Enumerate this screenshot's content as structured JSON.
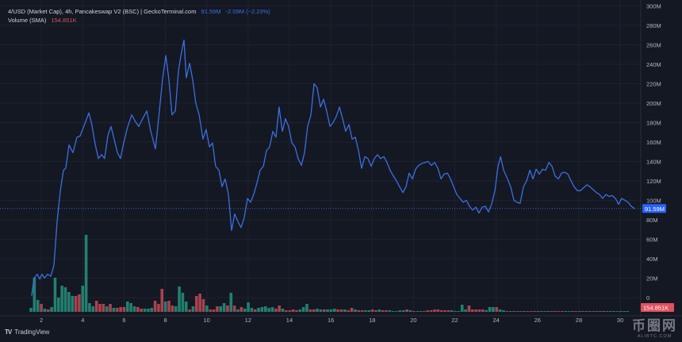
{
  "legend": {
    "title": "4/USD (Market Cap), 4h, Pancakeswap V2 (BSC) | GeckoTerminal.com",
    "last_value": "91.59M",
    "change": "-2.09M (−2.23%)",
    "volume_label": "Volume (SMA)",
    "volume_value": "154.851K"
  },
  "price_label": "91.59M",
  "volume_price_label": "154.851K",
  "footer": {
    "logo": "TV",
    "brand": "TradingView"
  },
  "watermark": {
    "cn": "币圈网",
    "en": "ALIBTC.COM"
  },
  "colors": {
    "background": "#141823",
    "line": "#3b6fe0",
    "up": "#22806f",
    "down": "#a8434f",
    "grid": "#1e2230",
    "price_tag": "#2962ff",
    "volume_tag": "#e0505e"
  },
  "chart_data": {
    "type": "line",
    "xlabel": "",
    "ylabel": "",
    "x_ticks": [
      "2",
      "4",
      "6",
      "8",
      "10",
      "12",
      "14",
      "16",
      "18",
      "20",
      "22",
      "24",
      "26",
      "28",
      "30"
    ],
    "y_ticks": [
      "0",
      "20M",
      "40M",
      "60M",
      "80M",
      "100M",
      "120M",
      "140M",
      "160M",
      "180M",
      "200M",
      "220M",
      "240M",
      "260M",
      "280M",
      "300M"
    ],
    "ylim": [
      0,
      300
    ],
    "y_unit": "M",
    "grid": true,
    "series": [
      {
        "points": [
          [
            1.53,
            2
          ],
          [
            1.65,
            20
          ],
          [
            1.8,
            24
          ],
          [
            1.92,
            19
          ],
          [
            2.03,
            24
          ],
          [
            2.15,
            20
          ],
          [
            2.3,
            24
          ],
          [
            2.46,
            22
          ],
          [
            2.61,
            33
          ],
          [
            2.76,
            78
          ],
          [
            2.92,
            110
          ],
          [
            3.07,
            131
          ],
          [
            3.18,
            133
          ],
          [
            3.34,
            157
          ],
          [
            3.53,
            149
          ],
          [
            3.72,
            165
          ],
          [
            3.87,
            166
          ],
          [
            4.07,
            177
          ],
          [
            4.3,
            190
          ],
          [
            4.45,
            177
          ],
          [
            4.6,
            158
          ],
          [
            4.76,
            143
          ],
          [
            4.91,
            147
          ],
          [
            5.06,
            143
          ],
          [
            5.22,
            167
          ],
          [
            5.37,
            176
          ],
          [
            5.52,
            163
          ],
          [
            5.68,
            149
          ],
          [
            5.83,
            143
          ],
          [
            5.98,
            159
          ],
          [
            6.18,
            176
          ],
          [
            6.37,
            188
          ],
          [
            6.52,
            182
          ],
          [
            6.71,
            176
          ],
          [
            6.9,
            184
          ],
          [
            7.1,
            192
          ],
          [
            7.29,
            171
          ],
          [
            7.52,
            153
          ],
          [
            7.71,
            192
          ],
          [
            7.86,
            224
          ],
          [
            8.02,
            249
          ],
          [
            8.17,
            224
          ],
          [
            8.32,
            188
          ],
          [
            8.48,
            192
          ],
          [
            8.63,
            233
          ],
          [
            8.75,
            249
          ],
          [
            8.9,
            265
          ],
          [
            9.01,
            226
          ],
          [
            9.17,
            241
          ],
          [
            9.32,
            224
          ],
          [
            9.47,
            200
          ],
          [
            9.63,
            188
          ],
          [
            9.82,
            163
          ],
          [
            9.97,
            173
          ],
          [
            10.13,
            155
          ],
          [
            10.28,
            159
          ],
          [
            10.43,
            135
          ],
          [
            10.59,
            131
          ],
          [
            10.74,
            114
          ],
          [
            10.89,
            122
          ],
          [
            11.05,
            106
          ],
          [
            11.2,
            69
          ],
          [
            11.35,
            86
          ],
          [
            11.51,
            78
          ],
          [
            11.66,
            72
          ],
          [
            11.81,
            82
          ],
          [
            11.97,
            102
          ],
          [
            12.12,
            98
          ],
          [
            12.27,
            106
          ],
          [
            12.43,
            118
          ],
          [
            12.58,
            131
          ],
          [
            12.74,
            135
          ],
          [
            12.89,
            151
          ],
          [
            13.04,
            155
          ],
          [
            13.2,
            171
          ],
          [
            13.35,
            165
          ],
          [
            13.5,
            196
          ],
          [
            13.66,
            171
          ],
          [
            13.81,
            184
          ],
          [
            13.96,
            176
          ],
          [
            14.12,
            159
          ],
          [
            14.27,
            155
          ],
          [
            14.42,
            143
          ],
          [
            14.58,
            136
          ],
          [
            14.73,
            149
          ],
          [
            14.88,
            176
          ],
          [
            15.04,
            188
          ],
          [
            15.19,
            220
          ],
          [
            15.34,
            216
          ],
          [
            15.5,
            196
          ],
          [
            15.65,
            204
          ],
          [
            15.8,
            192
          ],
          [
            15.96,
            176
          ],
          [
            16.11,
            180
          ],
          [
            16.26,
            186
          ],
          [
            16.42,
            196
          ],
          [
            16.57,
            184
          ],
          [
            16.72,
            171
          ],
          [
            16.88,
            178
          ],
          [
            17.03,
            163
          ],
          [
            17.19,
            165
          ],
          [
            17.34,
            151
          ],
          [
            17.49,
            133
          ],
          [
            17.65,
            145
          ],
          [
            17.8,
            143
          ],
          [
            17.95,
            135
          ],
          [
            18.11,
            143
          ],
          [
            18.26,
            147
          ],
          [
            18.41,
            143
          ],
          [
            18.57,
            145
          ],
          [
            18.72,
            139
          ],
          [
            18.87,
            131
          ],
          [
            19.03,
            125
          ],
          [
            19.18,
            120
          ],
          [
            19.33,
            114
          ],
          [
            19.49,
            108
          ],
          [
            19.64,
            114
          ],
          [
            19.79,
            128
          ],
          [
            19.95,
            122
          ],
          [
            20.1,
            132
          ],
          [
            20.25,
            136
          ],
          [
            20.41,
            138
          ],
          [
            20.56,
            139
          ],
          [
            20.71,
            140
          ],
          [
            20.87,
            136
          ],
          [
            21.02,
            139
          ],
          [
            21.18,
            133
          ],
          [
            21.33,
            122
          ],
          [
            21.48,
            127
          ],
          [
            21.64,
            128
          ],
          [
            21.79,
            122
          ],
          [
            21.94,
            114
          ],
          [
            22.1,
            106
          ],
          [
            22.25,
            102
          ],
          [
            22.4,
            98
          ],
          [
            22.56,
            100
          ],
          [
            22.71,
            94
          ],
          [
            22.86,
            90
          ],
          [
            23.02,
            93
          ],
          [
            23.17,
            87
          ],
          [
            23.32,
            93
          ],
          [
            23.48,
            94
          ],
          [
            23.63,
            88
          ],
          [
            23.78,
            96
          ],
          [
            23.94,
            110
          ],
          [
            24.09,
            135
          ],
          [
            24.21,
            145
          ],
          [
            24.36,
            131
          ],
          [
            24.55,
            122
          ],
          [
            24.7,
            114
          ],
          [
            24.86,
            100
          ],
          [
            25.01,
            98
          ],
          [
            25.16,
            97
          ],
          [
            25.32,
            114
          ],
          [
            25.47,
            120
          ],
          [
            25.63,
            131
          ],
          [
            25.78,
            122
          ],
          [
            25.93,
            132
          ],
          [
            26.09,
            127
          ],
          [
            26.24,
            132
          ],
          [
            26.39,
            131
          ],
          [
            26.55,
            139
          ],
          [
            26.7,
            135
          ],
          [
            26.85,
            125
          ],
          [
            27.01,
            122
          ],
          [
            27.16,
            128
          ],
          [
            27.31,
            129
          ],
          [
            27.47,
            127
          ],
          [
            27.62,
            120
          ],
          [
            27.77,
            114
          ],
          [
            27.93,
            110
          ],
          [
            28.08,
            110
          ],
          [
            28.23,
            113
          ],
          [
            28.39,
            116
          ],
          [
            28.54,
            114
          ],
          [
            28.69,
            111
          ],
          [
            28.85,
            108
          ],
          [
            29.0,
            106
          ],
          [
            29.15,
            102
          ],
          [
            29.31,
            106
          ],
          [
            29.46,
            104
          ],
          [
            29.61,
            105
          ],
          [
            29.77,
            102
          ],
          [
            29.92,
            96
          ],
          [
            30.07,
            102
          ],
          [
            30.23,
            100
          ],
          [
            30.38,
            98
          ],
          [
            30.53,
            94
          ],
          [
            30.69,
            91.59
          ]
        ]
      }
    ],
    "volume": {
      "relative_values": [
        5,
        43,
        15,
        10,
        4,
        3,
        6,
        43,
        18,
        33,
        31,
        25,
        20,
        20,
        22,
        33,
        97,
        11,
        7,
        14,
        10,
        10,
        7,
        10,
        5,
        5,
        6,
        6,
        13,
        11,
        7,
        6,
        4,
        4,
        4,
        5,
        14,
        10,
        29,
        13,
        14,
        8,
        7,
        32,
        24,
        13,
        3,
        7,
        20,
        23,
        16,
        8,
        3,
        3,
        7,
        7,
        11,
        8,
        24,
        8,
        3,
        6,
        4,
        12,
        5,
        3,
        5,
        6,
        7,
        5,
        6,
        4,
        8,
        4,
        2,
        2,
        3,
        2,
        3,
        6,
        10,
        3,
        3,
        4,
        3,
        3,
        3,
        3,
        4,
        3,
        3,
        3,
        2,
        5,
        3,
        2,
        2,
        2,
        2,
        3,
        2,
        3,
        2,
        2,
        2,
        1,
        1,
        2,
        2,
        3,
        2,
        1,
        1,
        1,
        1,
        2,
        2,
        3,
        3,
        2,
        2,
        2,
        2,
        1,
        1,
        9,
        3,
        8,
        3,
        3,
        3,
        3,
        2,
        6,
        6,
        6,
        3,
        2,
        1,
        1,
        1,
        1,
        1,
        1,
        1,
        1,
        1,
        1,
        1,
        1,
        1,
        1,
        1,
        1,
        1,
        1,
        1,
        1,
        1,
        1,
        1,
        1,
        1,
        1,
        1,
        1,
        1,
        1,
        1,
        1,
        1,
        1,
        1,
        1
      ],
      "up": "gggrgrgggggggrrggggrrrgrgrrrgggrrgggrrrgrrggggrgrrrgrrrggrgrgrgggrgggggrrgrrrrgggrrggrgggrrgrrgrrggrrgrrgggggrgrggrrrrrrrrgggggrrrrrgggrggrgrgrgrrrgrgrgrrrggrrgrgrgrgr"
    }
  }
}
